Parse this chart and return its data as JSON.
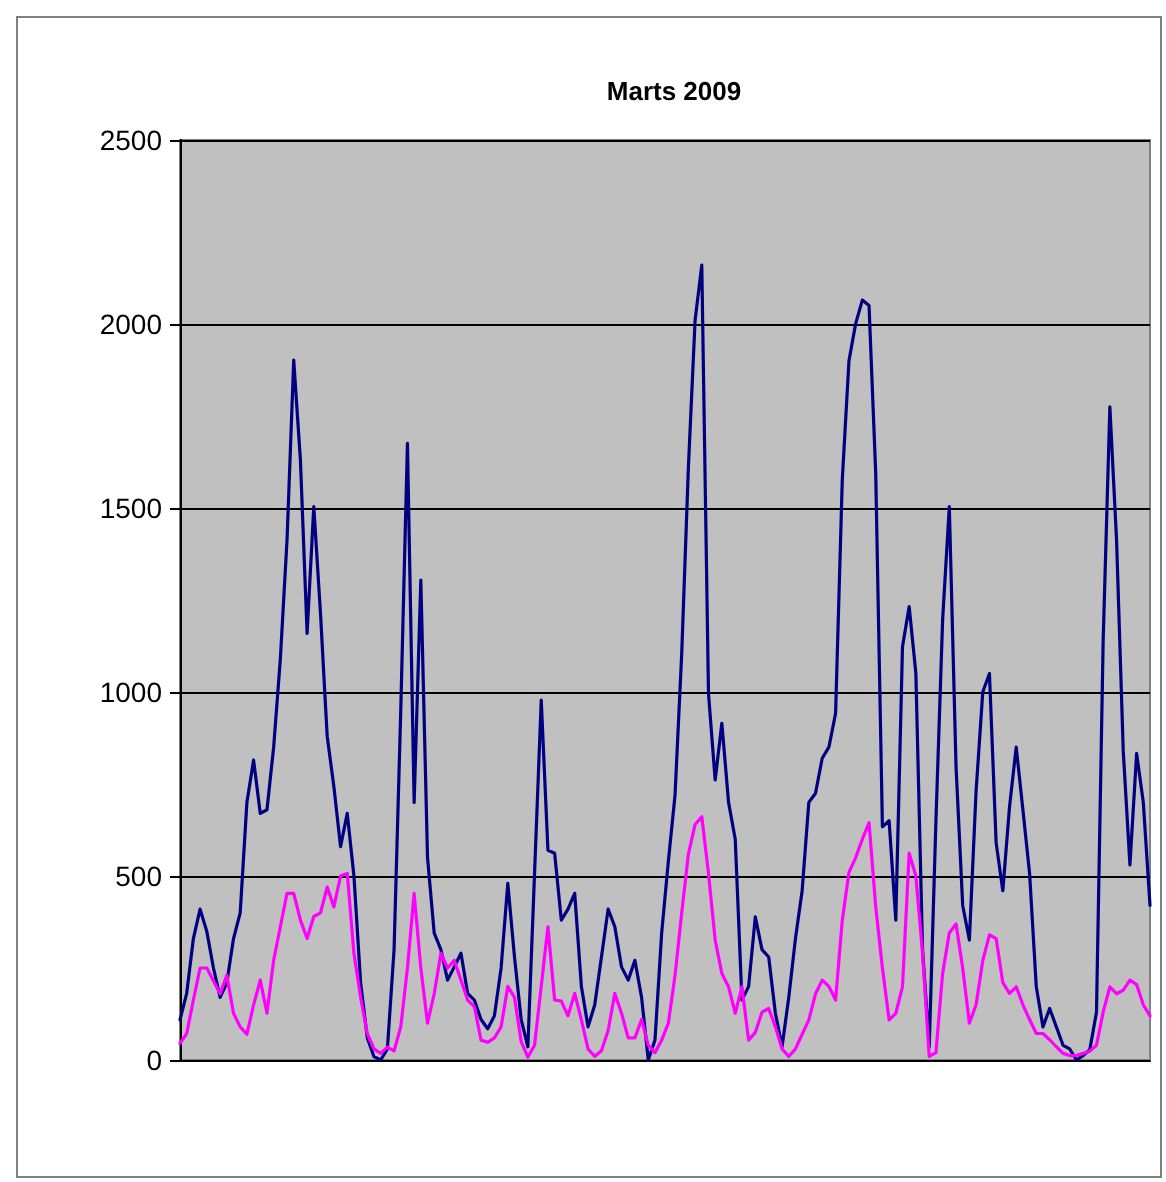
{
  "chart_data": {
    "type": "line",
    "title": "Marts 2009",
    "categories": [
      null,
      null,
      null,
      null,
      null,
      null,
      null,
      null,
      null,
      null,
      null,
      null,
      null,
      null,
      null,
      null,
      null,
      null,
      null,
      null,
      null,
      null,
      null,
      null,
      null,
      null,
      null,
      null,
      null,
      null,
      null,
      null,
      null,
      null,
      null,
      null,
      null,
      null,
      null,
      null,
      null,
      null,
      null,
      null,
      null,
      null,
      null,
      null,
      null,
      null,
      null,
      null,
      null,
      null,
      null,
      null,
      null,
      null,
      null,
      null,
      null,
      null,
      null,
      null,
      null,
      null,
      null,
      null,
      null,
      null,
      null,
      null,
      null,
      null,
      null,
      null,
      null,
      null,
      null,
      null,
      null,
      null,
      null,
      null,
      null,
      null,
      null,
      null,
      null,
      null,
      null,
      null,
      null,
      null,
      null,
      null,
      null,
      null,
      null,
      null,
      null,
      null,
      null,
      null,
      null,
      null,
      null,
      null,
      null,
      null,
      null,
      null,
      null,
      null,
      null,
      null,
      null,
      null,
      null,
      null,
      null,
      null,
      null,
      null,
      null,
      null,
      null,
      null,
      null,
      null,
      null,
      null,
      null,
      null,
      null,
      null,
      null,
      null,
      null,
      null,
      null,
      null,
      null,
      null,
      null,
      null
    ],
    "series": [
      {
        "color": "#000080",
        "values": [
          109,
          181,
          330,
          410,
          350,
          250,
          170,
          210,
          330,
          400,
          700,
          815,
          670,
          680,
          850,
          1090,
          1413,
          1902,
          1630,
          1159,
          1504,
          1214,
          880,
          743,
          580,
          670,
          500,
          210,
          60,
          9,
          0,
          30,
          300,
          950,
          1676,
          700,
          1304,
          550,
          345,
          300,
          217,
          253,
          290,
          181,
          163,
          110,
          85,
          120,
          250,
          480,
          280,
          110,
          36,
          507,
          978,
          570,
          562,
          380,
          410,
          453,
          200,
          90,
          150,
          280,
          410,
          362,
          253,
          217,
          271,
          170,
          0,
          54,
          345,
          540,
          720,
          1105,
          1612,
          2011,
          2160,
          996,
          761,
          915,
          700,
          600,
          163,
          200,
          389,
          300,
          280,
          127,
          36,
          170,
          330,
          460,
          700,
          725,
          820,
          850,
          942,
          1576,
          1900,
          2001,
          2065,
          2050,
          1594,
          634,
          650,
          380,
          1123,
          1232,
          1051,
          300,
          36,
          650,
          1196,
          1504,
          800,
          420,
          326,
          730,
          1000,
          1050,
          590,
          460,
          688,
          850,
          680,
          507,
          199,
          90,
          140,
          90,
          40,
          30,
          0,
          12,
          28,
          130,
          1141,
          1775,
          1413,
          840,
          530,
          833,
          700,
          420
        ]
      },
      {
        "color": "#ff00ff",
        "values": [
          45,
          72,
          163,
          250,
          250,
          215,
          180,
          230,
          127,
          90,
          70,
          150,
          217,
          127,
          271,
          362,
          453,
          453,
          380,
          330,
          390,
          400,
          470,
          416,
          500,
          507,
          290,
          170,
          72,
          30,
          18,
          35,
          25,
          90,
          250,
          453,
          250,
          100,
          180,
          290,
          250,
          271,
          217,
          163,
          145,
          54,
          48,
          60,
          90,
          200,
          170,
          50,
          8,
          40,
          200,
          362,
          163,
          160,
          120,
          181,
          109,
          30,
          10,
          25,
          80,
          181,
          127,
          60,
          60,
          110,
          40,
          20,
          54,
          100,
          230,
          400,
          560,
          640,
          661,
          507,
          326,
          235,
          199,
          127,
          199,
          54,
          75,
          130,
          140,
          90,
          30,
          10,
          30,
          70,
          109,
          180,
          217,
          200,
          163,
          380,
          510,
          550,
          600,
          645,
          416,
          250,
          109,
          127,
          199,
          562,
          500,
          290,
          10,
          20,
          235,
          345,
          370,
          250,
          100,
          150,
          270,
          340,
          330,
          210,
          181,
          199,
          150,
          110,
          72,
          72,
          55,
          36,
          18,
          12,
          12,
          18,
          24,
          40,
          130,
          199,
          180,
          190,
          217,
          205,
          150,
          120
        ]
      }
    ],
    "ylim": [
      0,
      2500
    ],
    "yticks": [
      0,
      500,
      1000,
      1500,
      2000,
      2500
    ],
    "grid": "y",
    "tick_labels": "y",
    "line_style": "solid"
  }
}
